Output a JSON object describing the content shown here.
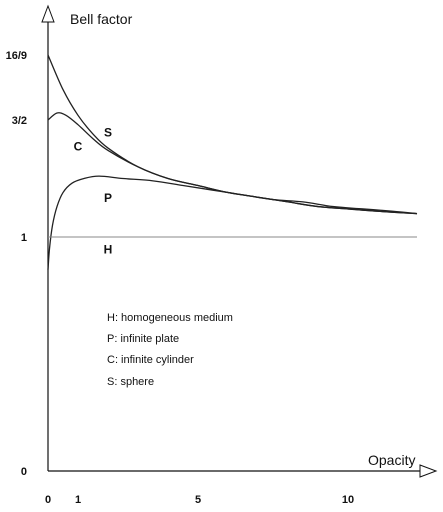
{
  "chart_data": {
    "type": "line",
    "xlabel": "Opacity",
    "ylabel": "Bell factor",
    "xlim": [
      0,
      12.5
    ],
    "ylim": [
      0,
      1.9
    ],
    "x_ticks": [
      {
        "value": 0,
        "label": "0"
      },
      {
        "value": 1,
        "label": "1"
      },
      {
        "value": 5,
        "label": "5"
      },
      {
        "value": 10,
        "label": "10"
      }
    ],
    "y_ticks": [
      {
        "value": 0,
        "label": "0"
      },
      {
        "value": 1,
        "label": "1"
      },
      {
        "value": 1.5,
        "label": "3/2"
      },
      {
        "value": 1.7778,
        "label": "16/9"
      }
    ],
    "grid": false,
    "series": [
      {
        "name": "S",
        "x": [
          0,
          0.5,
          1,
          1.5,
          2,
          3,
          4,
          5,
          6,
          7,
          8,
          9,
          10,
          11,
          12.3
        ],
        "values": [
          1.778,
          1.63,
          1.52,
          1.44,
          1.38,
          1.3,
          1.25,
          1.22,
          1.19,
          1.17,
          1.15,
          1.13,
          1.12,
          1.11,
          1.1
        ]
      },
      {
        "name": "C",
        "x": [
          0,
          0.3,
          0.6,
          1,
          1.5,
          2,
          3,
          4,
          5,
          6,
          7,
          8,
          9,
          10,
          11,
          12.3
        ],
        "values": [
          1.5,
          1.53,
          1.52,
          1.48,
          1.42,
          1.37,
          1.3,
          1.25,
          1.22,
          1.19,
          1.17,
          1.15,
          1.13,
          1.12,
          1.11,
          1.1
        ]
      },
      {
        "name": "P",
        "x": [
          0,
          0.05,
          0.15,
          0.3,
          0.5,
          0.8,
          1.2,
          1.7,
          2.5,
          3.5,
          4.5,
          5.5,
          6.5,
          7.5,
          8.5,
          9.5,
          10.5,
          11.5,
          12.3
        ],
        "values": [
          0.86,
          0.95,
          1.05,
          1.13,
          1.19,
          1.23,
          1.25,
          1.26,
          1.25,
          1.24,
          1.22,
          1.2,
          1.18,
          1.16,
          1.15,
          1.13,
          1.12,
          1.11,
          1.1
        ]
      },
      {
        "name": "H",
        "x": [
          0,
          12.3
        ],
        "values": [
          1,
          1
        ]
      }
    ],
    "curve_labels": [
      {
        "text": "S",
        "x": 2.0,
        "y": 1.43
      },
      {
        "text": "C",
        "x": 1.0,
        "y": 1.37
      },
      {
        "text": "P",
        "x": 2.0,
        "y": 1.15
      },
      {
        "text": "H",
        "x": 2.0,
        "y": 0.93
      }
    ],
    "legend": {
      "placement": "center",
      "entries": [
        "H: homogeneous medium",
        "P: infinite plate",
        "C: infinite cylinder",
        "S: sphere"
      ]
    }
  }
}
